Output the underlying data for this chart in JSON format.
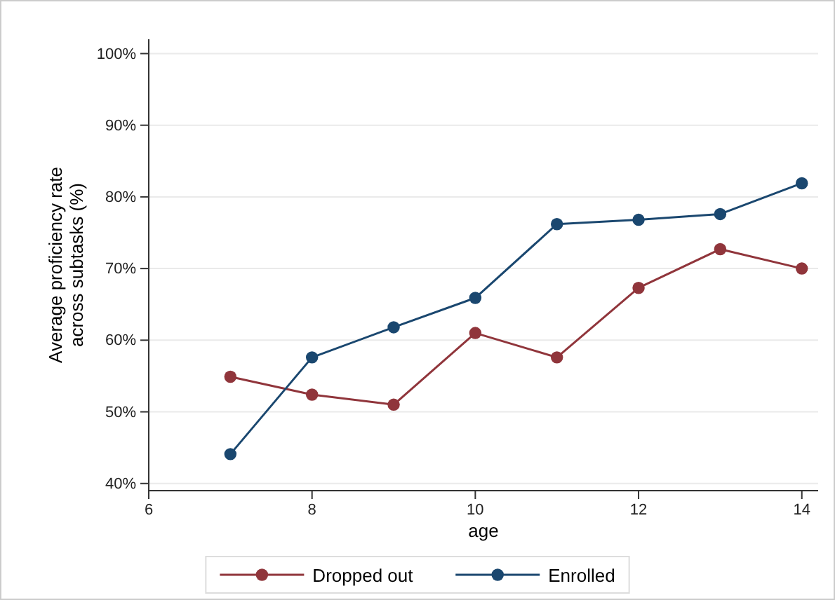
{
  "chart_data": {
    "type": "line",
    "xlabel": "age",
    "ylabel": "Average proficiency rate across subtasks (%)",
    "x": [
      7,
      8,
      9,
      10,
      11,
      12,
      13,
      14
    ],
    "series": [
      {
        "name": "Dropped out",
        "color": "#90353b",
        "values": [
          54.9,
          52.4,
          51.0,
          61.0,
          57.6,
          67.3,
          72.7,
          70.0
        ]
      },
      {
        "name": "Enrolled",
        "color": "#1a476f",
        "values": [
          44.1,
          57.6,
          61.8,
          65.9,
          76.2,
          76.8,
          77.6,
          81.9
        ]
      }
    ],
    "xlim": [
      6,
      14.2
    ],
    "xticks": [
      6,
      8,
      10,
      12,
      14
    ],
    "ylim": [
      39,
      102
    ],
    "yticks": [
      {
        "value": 40,
        "label": "40%"
      },
      {
        "value": 50,
        "label": "50%"
      },
      {
        "value": 60,
        "label": "60%"
      },
      {
        "value": 70,
        "label": "70%"
      },
      {
        "value": 80,
        "label": "80%"
      },
      {
        "value": 90,
        "label": "90%"
      },
      {
        "value": 100,
        "label": "100%"
      }
    ],
    "grid": "y",
    "legend": "bottom",
    "marker": "circle",
    "line_style": "solid"
  }
}
